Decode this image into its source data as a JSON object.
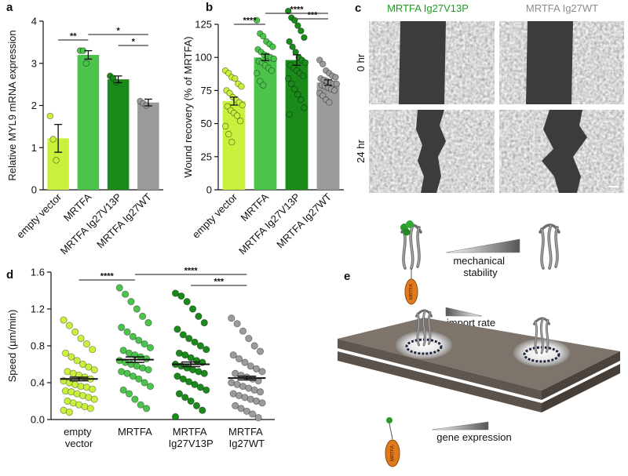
{
  "chart_data": [
    {
      "type": "bar",
      "panel": "a",
      "ylabel": "Relative MYL9 mRNA expression",
      "categories": [
        "empty vector",
        "MRTFA",
        "MRTFA Ig27V13P",
        "MRTFA Ig27WT"
      ],
      "colors": [
        "#c8f03c",
        "#4cc44c",
        "#1a8a1a",
        "#9b9b9b"
      ],
      "values": [
        1.22,
        3.2,
        2.62,
        2.07
      ],
      "errors": [
        0.33,
        0.1,
        0.08,
        0.08
      ],
      "points": [
        [
          1.75,
          1.2,
          0.7
        ],
        [
          3.3,
          3.3,
          3.0
        ],
        [
          2.7,
          2.65,
          2.55
        ],
        [
          2.1,
          2.05,
          2.0
        ]
      ],
      "ylim": [
        0,
        4
      ],
      "yticks": [
        0,
        1,
        2,
        3,
        4
      ],
      "significance": [
        {
          "from": 1,
          "to": 3,
          "label": "*"
        },
        {
          "from": 0,
          "to": 1,
          "label": "**"
        },
        {
          "from": 2,
          "to": 3,
          "label": "*"
        }
      ]
    },
    {
      "type": "bar",
      "panel": "b",
      "ylabel": "Wound recovery (% of MRTFA)",
      "categories": [
        "empty vector",
        "MRTFA",
        "MRTFA Ig27V13P",
        "MRTFA Ig27WT"
      ],
      "colors": [
        "#c8f03c",
        "#4cc44c",
        "#1a8a1a",
        "#9b9b9b"
      ],
      "values": [
        67,
        100,
        98,
        81
      ],
      "errors": [
        3,
        2.5,
        4,
        2
      ],
      "points": [
        [
          90,
          88,
          85,
          84,
          80,
          78,
          75,
          73,
          70,
          68,
          66,
          64,
          63,
          60,
          58,
          56,
          52,
          48,
          42,
          36
        ],
        [
          128,
          118,
          116,
          112,
          110,
          108,
          106,
          104,
          102,
          101,
          100,
          99,
          97,
          96,
          94,
          92,
          90,
          88,
          82,
          79
        ],
        [
          135,
          130,
          128,
          124,
          120,
          115,
          112,
          108,
          104,
          100,
          98,
          96,
          94,
          92,
          90,
          88,
          86,
          84,
          80,
          76,
          72,
          68,
          62,
          57
        ],
        [
          98,
          95,
          90,
          88,
          86,
          85,
          84,
          83,
          82,
          81,
          80,
          80,
          79,
          78,
          77,
          76,
          75,
          73,
          71,
          68,
          66
        ]
      ],
      "ylim": [
        0,
        125
      ],
      "yticks": [
        0,
        25,
        50,
        75,
        100,
        125
      ],
      "significance": [
        {
          "from": 1,
          "to": 3,
          "label": "****"
        },
        {
          "from": 2,
          "to": 3,
          "label": "***"
        },
        {
          "from": 0,
          "to": 1,
          "label": "****"
        }
      ]
    },
    {
      "type": "strip",
      "panel": "d",
      "ylabel": "Speed (µm/min)",
      "categories": [
        "empty vector",
        "MRTFA",
        "MRTFA Ig27V13P",
        "MRTFA Ig27WT"
      ],
      "colors": [
        "#c8f03c",
        "#4cc44c",
        "#1a8a1a",
        "#9b9b9b"
      ],
      "values": [
        0.44,
        0.65,
        0.6,
        0.45
      ],
      "errors": [
        0.02,
        0.03,
        0.025,
        0.02
      ],
      "points": [
        [
          1.08,
          1.02,
          0.95,
          0.88,
          0.82,
          0.76,
          0.72,
          0.68,
          0.64,
          0.6,
          0.57,
          0.54,
          0.52,
          0.5,
          0.48,
          0.46,
          0.44,
          0.42,
          0.4,
          0.38,
          0.36,
          0.35,
          0.33,
          0.31,
          0.3,
          0.28,
          0.26,
          0.24,
          0.22,
          0.2,
          0.18,
          0.16,
          0.14,
          0.12,
          0.1,
          0.08
        ],
        [
          1.43,
          1.36,
          1.28,
          1.2,
          1.12,
          1.05,
          1.0,
          0.95,
          0.9,
          0.86,
          0.82,
          0.78,
          0.75,
          0.72,
          0.7,
          0.68,
          0.66,
          0.64,
          0.62,
          0.6,
          0.58,
          0.56,
          0.54,
          0.52,
          0.5,
          0.47,
          0.44,
          0.4,
          0.36,
          0.32,
          0.28,
          0.22,
          0.16,
          0.12
        ],
        [
          1.37,
          1.34,
          1.28,
          1.2,
          1.12,
          1.05,
          0.98,
          0.92,
          0.88,
          0.84,
          0.8,
          0.76,
          0.72,
          0.7,
          0.67,
          0.64,
          0.62,
          0.6,
          0.58,
          0.56,
          0.54,
          0.52,
          0.5,
          0.47,
          0.44,
          0.41,
          0.38,
          0.35,
          0.32,
          0.28,
          0.24,
          0.2,
          0.15,
          0.1,
          0.03
        ],
        [
          1.1,
          1.04,
          0.96,
          0.88,
          0.8,
          0.74,
          0.7,
          0.66,
          0.62,
          0.58,
          0.55,
          0.52,
          0.5,
          0.48,
          0.46,
          0.44,
          0.42,
          0.4,
          0.38,
          0.36,
          0.34,
          0.32,
          0.3,
          0.28,
          0.26,
          0.24,
          0.22,
          0.2,
          0.18,
          0.15,
          0.12,
          0.09,
          0.06,
          0.02
        ]
      ],
      "ylim": [
        0,
        1.6
      ],
      "yticks": [
        {
          "value": 0,
          "label": "0.0"
        },
        0.4,
        0.8,
        1.2,
        1.6
      ],
      "significance": [
        {
          "from": 1,
          "to": 3,
          "label": "****"
        },
        {
          "from": 0,
          "to": 1,
          "label": "****"
        },
        {
          "from": 2,
          "to": 3,
          "label": "***"
        }
      ]
    }
  ],
  "micrographs": {
    "panel": "c",
    "columns": [
      {
        "label": "MRTFA Ig27V13P",
        "color": "#1f9a1f"
      },
      {
        "label": "MRTFA Ig27WT",
        "color": "#8c8c8c"
      }
    ],
    "rows": [
      "0 hr",
      "24 hr"
    ]
  },
  "diagram": {
    "panel": "e",
    "mechanical": "mechanical stability",
    "import": "import rate",
    "expression": "gene expression",
    "protein": "MRTFA"
  }
}
